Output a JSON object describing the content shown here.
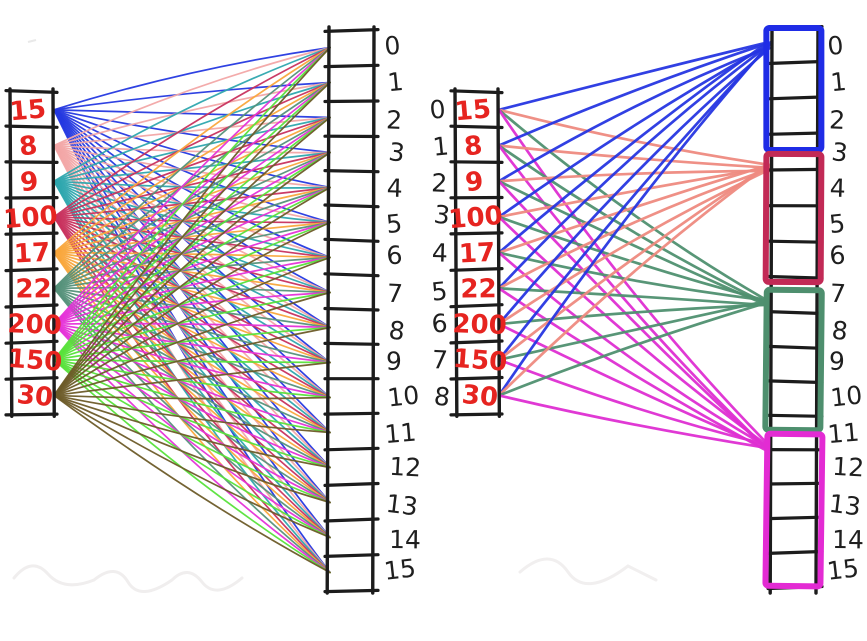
{
  "page": {
    "background": "#ffffff",
    "ink_color": "#1c1c1c",
    "value_color": "#e62420"
  },
  "left_diagram": {
    "description": "every value line-connected to all 16 slots",
    "source_array": {
      "values": [
        "15",
        "8",
        "9",
        "100",
        "17",
        "22",
        "200",
        "150",
        "30"
      ],
      "line_colors": [
        "#2438e0",
        "#f2a6a6",
        "#2ea7ae",
        "#c8315e",
        "#f9a73c",
        "#55917a",
        "#e531d8",
        "#57e13a",
        "#6d5b28"
      ]
    },
    "target_array": {
      "indices": [
        "0",
        "1",
        "2",
        "3",
        "4",
        "5",
        "6",
        "7",
        "8",
        "9",
        "10",
        "11",
        "12",
        "13",
        "14",
        "15"
      ]
    }
  },
  "right_diagram": {
    "description": "each value connected to the first slot of each group of four",
    "source_array": {
      "indices": [
        "0",
        "1",
        "2",
        "3",
        "4",
        "5",
        "6",
        "7",
        "8"
      ],
      "values": [
        "15",
        "8",
        "9",
        "100",
        "17",
        "22",
        "200",
        "150",
        "30"
      ]
    },
    "target_array": {
      "indices": [
        "0",
        "1",
        "2",
        "3",
        "4",
        "5",
        "6",
        "7",
        "8",
        "9",
        "10",
        "11",
        "12",
        "13",
        "14",
        "15"
      ]
    },
    "groups": [
      {
        "slots": "0-3",
        "color": "#1f2ce6"
      },
      {
        "slots": "4-7",
        "color": "#c22a56"
      },
      {
        "slots": "8-11",
        "color": "#4e8f6e"
      },
      {
        "slots": "12-15",
        "color": "#e32bd3"
      }
    ],
    "line_colors": [
      "#2636e2",
      "#ee8a80",
      "#4f9070",
      "#de2ed2"
    ]
  }
}
